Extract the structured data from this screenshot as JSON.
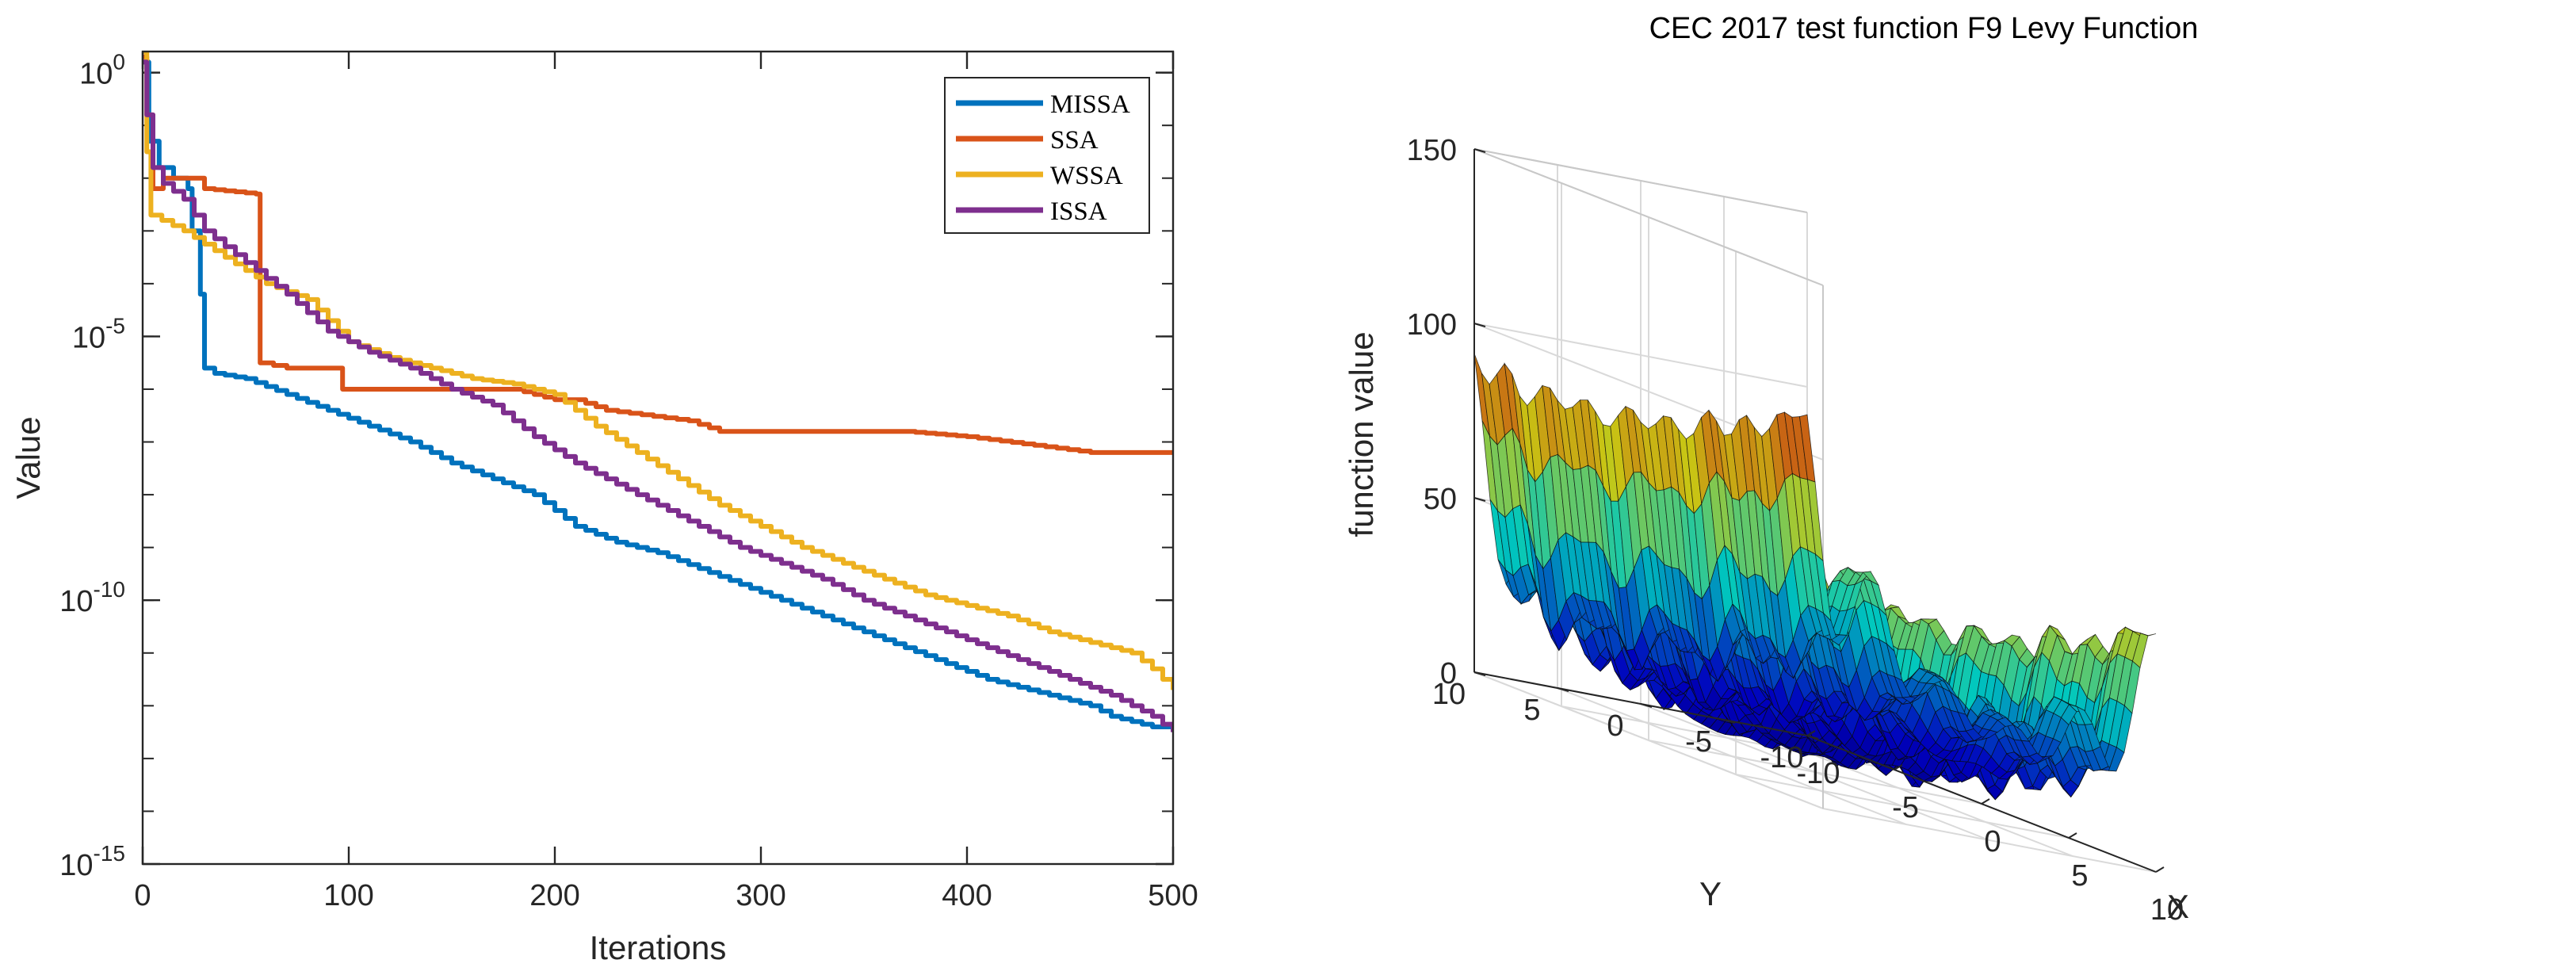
{
  "chart_data": [
    {
      "type": "line",
      "title": "",
      "xlabel": "Iterations",
      "ylabel": "Value",
      "xlim": [
        0,
        500
      ],
      "ylim_log10": [
        -15,
        0.4
      ],
      "yscale": "log",
      "x_ticks": [
        0,
        100,
        200,
        300,
        400,
        500
      ],
      "y_ticks": [
        {
          "exp": 0,
          "label_base": "10",
          "label_exp": "0"
        },
        {
          "exp": -5,
          "label_base": "10",
          "label_exp": "-5"
        },
        {
          "exp": -10,
          "label_base": "10",
          "label_exp": "-10"
        },
        {
          "exp": -15,
          "label_base": "10",
          "label_exp": "-15"
        }
      ],
      "legend_position": "top-right",
      "series": [
        {
          "name": "MISSA",
          "color": "#0072BD",
          "x": [
            0,
            3,
            8,
            15,
            22,
            24,
            28,
            30,
            35,
            50,
            70,
            90,
            110,
            130,
            150,
            170,
            190,
            200,
            210,
            230,
            250,
            270,
            290,
            310,
            330,
            350,
            370,
            390,
            410,
            430,
            450,
            460,
            470,
            480,
            490,
            500
          ],
          "log10": [
            0.2,
            -1.3,
            -1.8,
            -2.0,
            -2.2,
            -3.0,
            -4.2,
            -5.6,
            -5.7,
            -5.8,
            -6.1,
            -6.4,
            -6.7,
            -7.0,
            -7.4,
            -7.7,
            -8.0,
            -8.3,
            -8.6,
            -8.9,
            -9.1,
            -9.4,
            -9.7,
            -10.0,
            -10.3,
            -10.6,
            -10.9,
            -11.2,
            -11.5,
            -11.7,
            -11.9,
            -12.0,
            -12.2,
            -12.3,
            -12.4,
            -12.4
          ]
        },
        {
          "name": "SSA",
          "color": "#D95319",
          "x": [
            0,
            2,
            5,
            10,
            25,
            30,
            55,
            57,
            70,
            95,
            97,
            120,
            180,
            200,
            210,
            225,
            265,
            280,
            330,
            370,
            400,
            460,
            500
          ],
          "log10": [
            0.3,
            -0.8,
            -2.2,
            -2.0,
            -2.0,
            -2.2,
            -2.3,
            -5.5,
            -5.6,
            -5.6,
            -6.0,
            -6.0,
            -6.0,
            -6.2,
            -6.2,
            -6.4,
            -6.6,
            -6.8,
            -6.8,
            -6.8,
            -6.9,
            -7.2,
            -7.2
          ]
        },
        {
          "name": "WSSA",
          "color": "#EDB120",
          "x": [
            0,
            2,
            4,
            20,
            40,
            60,
            80,
            100,
            120,
            140,
            160,
            180,
            200,
            220,
            240,
            260,
            280,
            300,
            320,
            340,
            360,
            380,
            400,
            420,
            440,
            460,
            480,
            490,
            500
          ],
          "log10": [
            0.4,
            -1.5,
            -2.7,
            -3.0,
            -3.5,
            -4.0,
            -4.3,
            -5.1,
            -5.4,
            -5.6,
            -5.8,
            -5.9,
            -6.1,
            -6.7,
            -7.2,
            -7.7,
            -8.2,
            -8.6,
            -9.0,
            -9.3,
            -9.6,
            -9.9,
            -10.1,
            -10.3,
            -10.6,
            -10.8,
            -11.0,
            -11.3,
            -11.7
          ]
        },
        {
          "name": "ISSA",
          "color": "#7E2F8E",
          "x": [
            0,
            2,
            5,
            10,
            20,
            30,
            50,
            70,
            90,
            110,
            130,
            150,
            170,
            190,
            210,
            230,
            250,
            270,
            290,
            310,
            330,
            350,
            370,
            390,
            410,
            430,
            450,
            470,
            490,
            500
          ],
          "log10": [
            0.2,
            -0.8,
            -1.8,
            -2.1,
            -2.4,
            -3.0,
            -3.6,
            -4.2,
            -4.9,
            -5.3,
            -5.6,
            -6.0,
            -6.3,
            -6.9,
            -7.4,
            -7.8,
            -8.2,
            -8.6,
            -9.0,
            -9.3,
            -9.6,
            -10.0,
            -10.3,
            -10.6,
            -10.9,
            -11.2,
            -11.5,
            -11.8,
            -12.2,
            -12.5
          ]
        }
      ]
    },
    {
      "type": "surface",
      "title": "CEC 2017 test function F9 Levy Function",
      "xlabel": "X",
      "ylabel": "Y",
      "zlabel": "function value",
      "xlim": [
        -10,
        10
      ],
      "ylim": [
        -10,
        10
      ],
      "zlim": [
        0,
        150
      ],
      "x_ticks": [
        -10,
        -5,
        0,
        5,
        10
      ],
      "y_ticks": [
        -10,
        -5,
        0,
        5,
        10
      ],
      "z_ticks": [
        0,
        50,
        100,
        150
      ],
      "colormap": "jet"
    }
  ]
}
